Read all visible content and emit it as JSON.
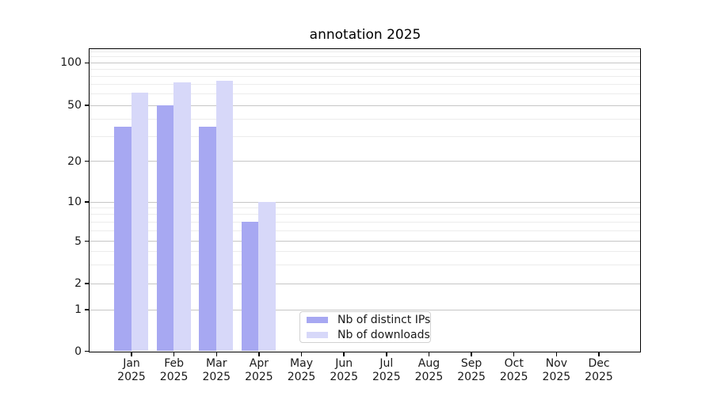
{
  "chart_data": {
    "type": "bar",
    "title": "annotation 2025",
    "x_months": [
      "Jan",
      "Feb",
      "Mar",
      "Apr",
      "May",
      "Jun",
      "Jul",
      "Aug",
      "Sep",
      "Oct",
      "Nov",
      "Dec"
    ],
    "year": "2025",
    "series": [
      {
        "name": "Nb of distinct IPs",
        "color": "#a7a8f2",
        "values": [
          35,
          50,
          35,
          7,
          null,
          null,
          null,
          null,
          null,
          null,
          null,
          null
        ]
      },
      {
        "name": "Nb of downloads",
        "color": "#d7d8f9",
        "values": [
          61,
          72,
          74,
          10,
          null,
          null,
          null,
          null,
          null,
          null,
          null,
          null
        ]
      }
    ],
    "y_ticks": [
      0,
      1,
      2,
      5,
      10,
      20,
      50,
      100
    ],
    "y_minor_gridlines": [
      3,
      4,
      6,
      7,
      8,
      9,
      30,
      40,
      60,
      70,
      80,
      90,
      110,
      120
    ],
    "y_scale": "log-with-zero",
    "ylim": [
      0,
      125
    ],
    "grid": true,
    "legend": {
      "position": "lower-center",
      "items": [
        "Nb of distinct IPs",
        "Nb of downloads"
      ]
    },
    "colors": {
      "major_grid": "#c6c6c6",
      "minor_grid": "#ececec",
      "axis": "#000000",
      "text": "#1a1a1a"
    }
  }
}
